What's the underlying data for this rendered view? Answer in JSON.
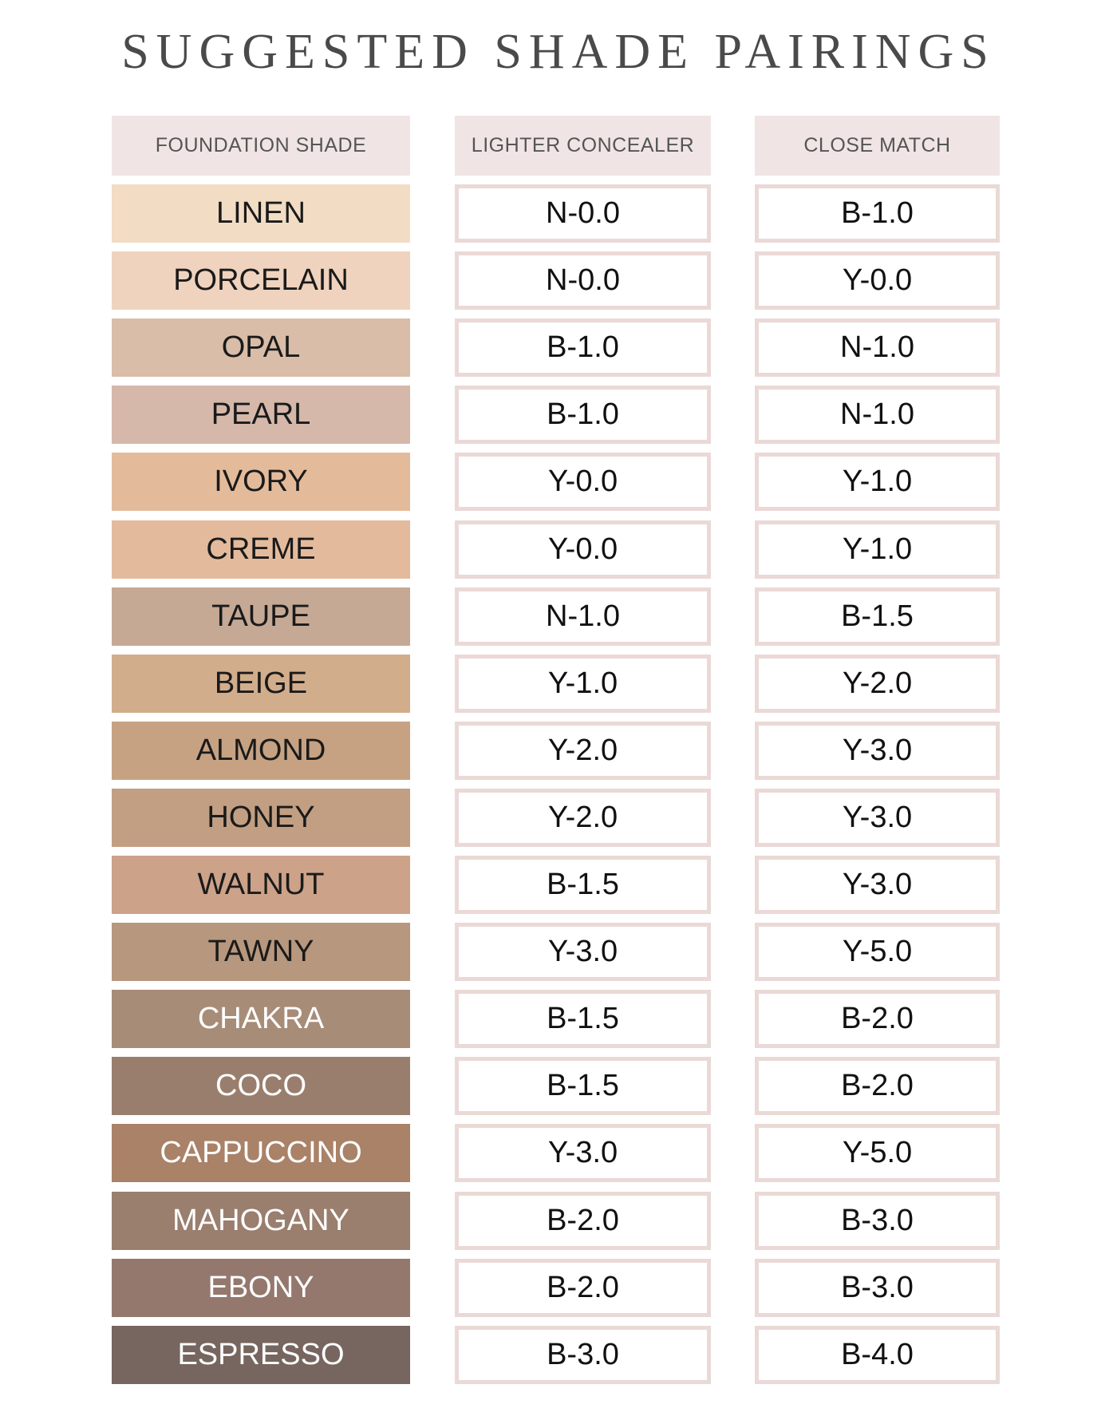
{
  "title": "SUGGESTED SHADE PAIRINGS",
  "headers": [
    "FOUNDATION SHADE",
    "LIGHTER CONCEALER",
    "CLOSE MATCH"
  ],
  "colors": {
    "header_bg": "#f0e5e4",
    "cell_border": "#ead9d6",
    "title_text": "#4a4a4a"
  },
  "rows": [
    {
      "shade": "LINEN",
      "lighter": "N-0.0",
      "close": "B-1.0",
      "color": "#f2dcc4",
      "light_text": false
    },
    {
      "shade": "PORCELAIN",
      "lighter": "N-0.0",
      "close": "Y-0.0",
      "color": "#efd3be",
      "light_text": false
    },
    {
      "shade": "OPAL",
      "lighter": "B-1.0",
      "close": "N-1.0",
      "color": "#d9bda8",
      "light_text": false
    },
    {
      "shade": "PEARL",
      "lighter": "B-1.0",
      "close": "N-1.0",
      "color": "#d5b8aa",
      "light_text": false
    },
    {
      "shade": "IVORY",
      "lighter": "Y-0.0",
      "close": "Y-1.0",
      "color": "#e4bb9a",
      "light_text": false
    },
    {
      "shade": "CREME",
      "lighter": "Y-0.0",
      "close": "Y-1.0",
      "color": "#e3bb9c",
      "light_text": false
    },
    {
      "shade": "TAUPE",
      "lighter": "N-1.0",
      "close": "B-1.5",
      "color": "#c5a995",
      "light_text": false
    },
    {
      "shade": "BEIGE",
      "lighter": "Y-1.0",
      "close": "Y-2.0",
      "color": "#d2ad8c",
      "light_text": false
    },
    {
      "shade": "ALMOND",
      "lighter": "Y-2.0",
      "close": "Y-3.0",
      "color": "#c6a283",
      "light_text": false
    },
    {
      "shade": "HONEY",
      "lighter": "Y-2.0",
      "close": "Y-3.0",
      "color": "#c29f82",
      "light_text": false
    },
    {
      "shade": "WALNUT",
      "lighter": "B-1.5",
      "close": "Y-3.0",
      "color": "#cca289",
      "light_text": false
    },
    {
      "shade": "TAWNY",
      "lighter": "Y-3.0",
      "close": "Y-5.0",
      "color": "#b7977d",
      "light_text": false
    },
    {
      "shade": "CHAKRA",
      "lighter": "B-1.5",
      "close": "B-2.0",
      "color": "#a78c78",
      "light_text": true
    },
    {
      "shade": "COCO",
      "lighter": "B-1.5",
      "close": "B-2.0",
      "color": "#9a7e6d",
      "light_text": true
    },
    {
      "shade": "CAPPUCCINO",
      "lighter": "Y-3.0",
      "close": "Y-5.0",
      "color": "#a98268",
      "light_text": true
    },
    {
      "shade": "MAHOGANY",
      "lighter": "B-2.0",
      "close": "B-3.0",
      "color": "#9a7e6e",
      "light_text": true
    },
    {
      "shade": "EBONY",
      "lighter": "B-2.0",
      "close": "B-3.0",
      "color": "#94786e",
      "light_text": true
    },
    {
      "shade": "ESPRESSO",
      "lighter": "B-3.0",
      "close": "B-4.0",
      "color": "#76665f",
      "light_text": true
    }
  ]
}
